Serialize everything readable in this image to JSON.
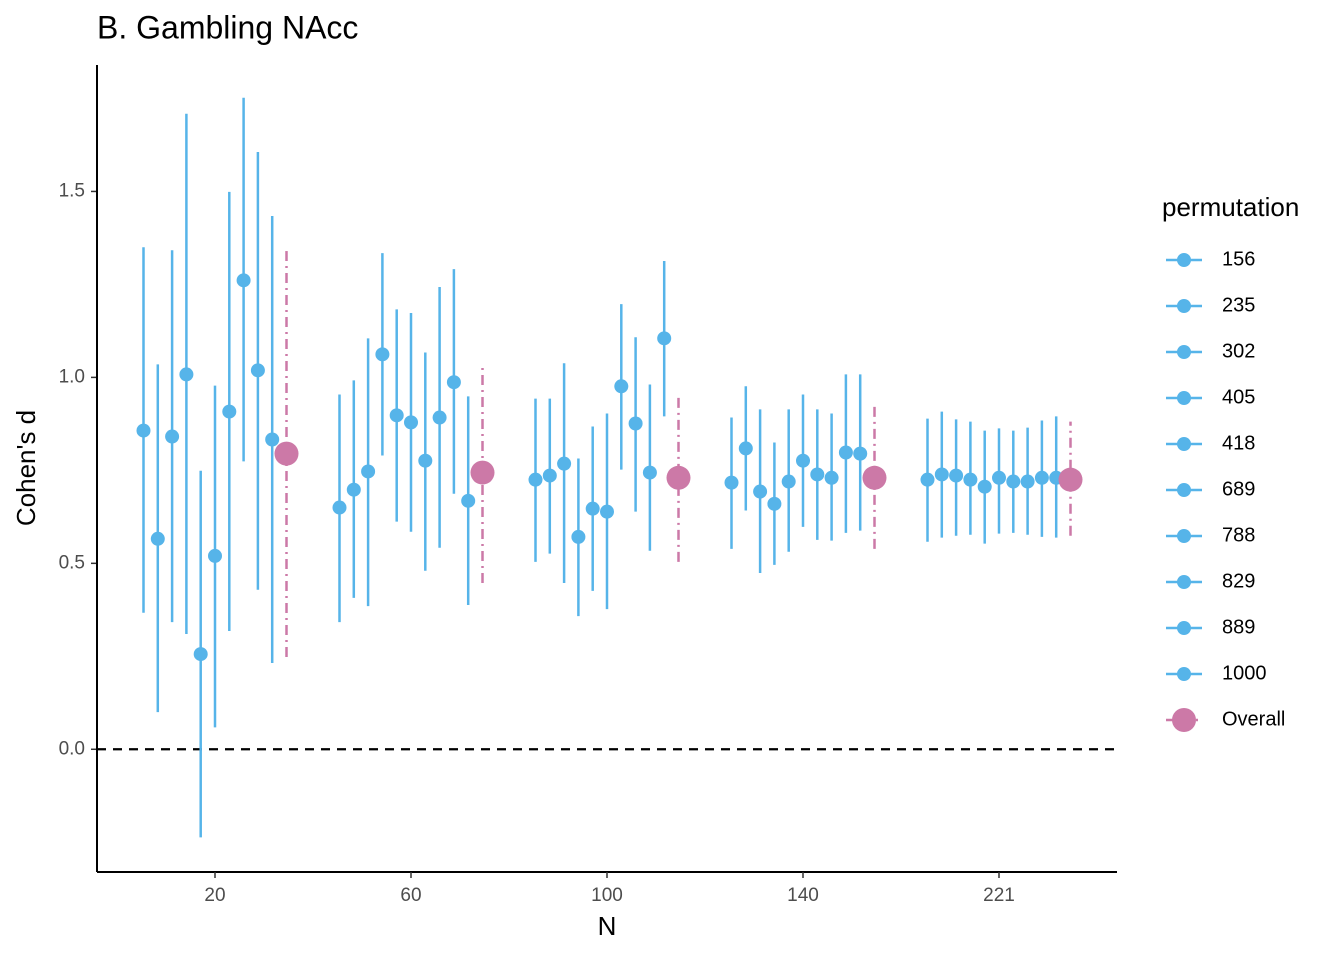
{
  "chart_data": {
    "type": "pointrange",
    "title": "B. Gambling NAcc",
    "x_label": "N",
    "y_label": "Cohen's d",
    "legend_title": "permutation",
    "legend": "right",
    "hline": 0,
    "categories": [
      "20",
      "60",
      "100",
      "140",
      "221"
    ],
    "ylim": [
      -0.33,
      1.84
    ],
    "yticks": [
      {
        "value": 0,
        "label": "0.0"
      },
      0.5,
      {
        "value": 1,
        "label": "1.0"
      },
      1.5
    ],
    "series": [
      {
        "name": "156",
        "color": "#56B4E9",
        "values": [
          0.857,
          0.65,
          0.725,
          0.717,
          0.725
        ],
        "lower": [
          0.367,
          0.342,
          0.504,
          0.539,
          0.558
        ],
        "upper": [
          1.35,
          0.954,
          0.943,
          0.892,
          0.889
        ]
      },
      {
        "name": "235",
        "color": "#56B4E9",
        "values": [
          0.566,
          0.698,
          0.736,
          0.809,
          0.739
        ],
        "lower": [
          0.1,
          0.407,
          0.526,
          0.642,
          0.569
        ],
        "upper": [
          1.035,
          0.992,
          0.943,
          0.976,
          0.908
        ]
      },
      {
        "name": "302",
        "color": "#56B4E9",
        "values": [
          0.841,
          0.747,
          0.768,
          0.693,
          0.736
        ],
        "lower": [
          0.342,
          0.385,
          0.447,
          0.474,
          0.574
        ],
        "upper": [
          1.342,
          1.105,
          1.038,
          0.914,
          0.887
        ]
      },
      {
        "name": "405",
        "color": "#56B4E9",
        "values": [
          1.008,
          1.062,
          0.571,
          0.66,
          0.725
        ],
        "lower": [
          0.31,
          0.79,
          0.358,
          0.496,
          0.577
        ],
        "upper": [
          1.709,
          1.334,
          0.782,
          0.825,
          0.881
        ]
      },
      {
        "name": "418",
        "color": "#56B4E9",
        "values": [
          0.256,
          0.898,
          0.647,
          0.72,
          0.706
        ],
        "lower": [
          -0.237,
          0.612,
          0.426,
          0.531,
          0.553
        ],
        "upper": [
          0.749,
          1.183,
          0.868,
          0.914,
          0.857
        ]
      },
      {
        "name": "689",
        "color": "#56B4E9",
        "values": [
          0.52,
          0.879,
          0.639,
          0.776,
          0.73
        ],
        "lower": [
          0.059,
          0.585,
          0.377,
          0.598,
          0.58
        ],
        "upper": [
          0.978,
          1.173,
          0.903,
          0.954,
          0.863
        ]
      },
      {
        "name": "788",
        "color": "#56B4E9",
        "values": [
          0.908,
          0.776,
          0.976,
          0.739,
          0.72
        ],
        "lower": [
          0.318,
          0.48,
          0.752,
          0.563,
          0.582
        ],
        "upper": [
          1.499,
          1.067,
          1.197,
          0.914,
          0.857
        ]
      },
      {
        "name": "829",
        "color": "#56B4E9",
        "values": [
          1.261,
          0.892,
          0.876,
          0.73,
          0.72
        ],
        "lower": [
          0.774,
          0.542,
          0.639,
          0.561,
          0.577
        ],
        "upper": [
          1.752,
          1.243,
          1.108,
          0.903,
          0.865
        ]
      },
      {
        "name": "889",
        "color": "#56B4E9",
        "values": [
          1.019,
          0.987,
          0.744,
          0.798,
          0.73
        ],
        "lower": [
          0.429,
          0.687,
          0.534,
          0.582,
          0.571
        ],
        "upper": [
          1.606,
          1.291,
          0.981,
          1.008,
          0.884
        ]
      },
      {
        "name": "1000",
        "color": "#56B4E9",
        "values": [
          0.833,
          0.668,
          1.105,
          0.795,
          0.73
        ],
        "lower": [
          0.232,
          0.388,
          0.895,
          0.588,
          0.569
        ],
        "upper": [
          1.434,
          0.949,
          1.313,
          1.008,
          0.895
        ]
      },
      {
        "name": "Overall",
        "color": "#CC79A7",
        "linestyle": "dashdot",
        "values": [
          0.795,
          0.744,
          0.73,
          0.73,
          0.725
        ],
        "lower": [
          0.248,
          0.447,
          0.504,
          0.539,
          0.574
        ],
        "upper": [
          1.34,
          1.035,
          0.957,
          0.922,
          0.881
        ]
      }
    ]
  }
}
